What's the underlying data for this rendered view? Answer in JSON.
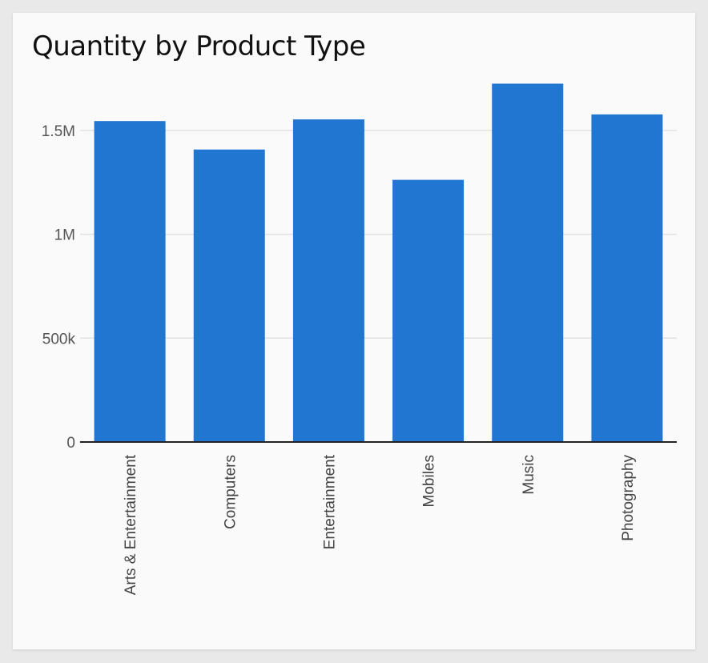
{
  "chart_data": {
    "type": "bar",
    "title": "Quantity by Product Type",
    "xlabel": "",
    "ylabel": "",
    "categories": [
      "Arts & Entertainment",
      "Computers",
      "Entertainment",
      "Mobiles",
      "Music",
      "Photography"
    ],
    "values": [
      1545000,
      1408000,
      1553000,
      1262000,
      1725000,
      1577000
    ],
    "ylim": [
      0,
      1750000
    ],
    "yticks": [
      0,
      500000,
      1000000,
      1500000
    ],
    "ytick_labels": [
      "0",
      "500k",
      "1M",
      "1.5M"
    ],
    "grid": true,
    "legend": "none",
    "colors": {
      "bar": "#2176d2",
      "grid": "#e2e2e2",
      "axis": "#222222"
    }
  }
}
